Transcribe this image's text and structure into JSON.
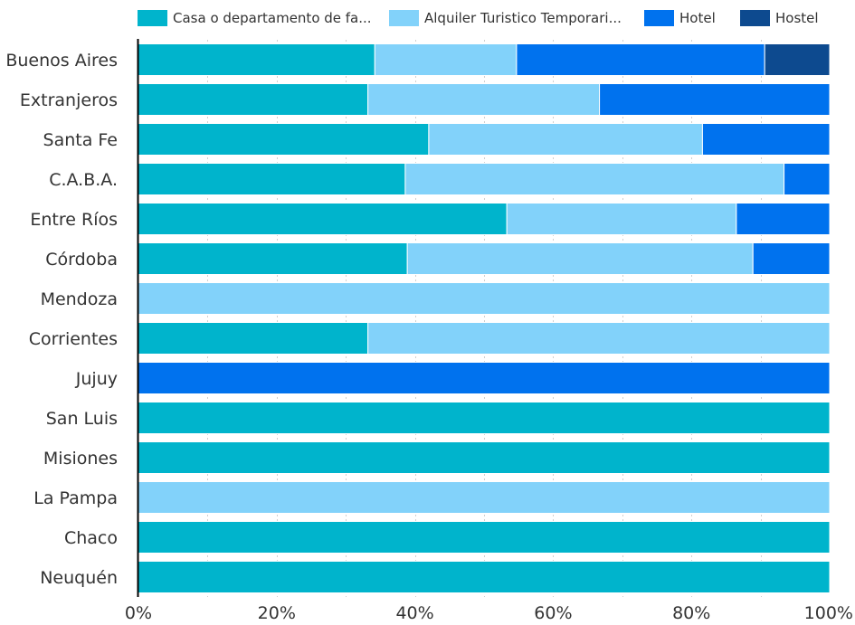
{
  "chart_data": {
    "type": "bar",
    "orientation": "horizontal",
    "stacked": "percent",
    "categories": [
      "Buenos Aires",
      "Extranjeros",
      "Santa Fe",
      "C.A.B.A.",
      "Entre Ríos",
      "Córdoba",
      "Mendoza",
      "Corrientes",
      "Jujuy",
      "San Luis",
      "Misiones",
      "La Pampa",
      "Chaco",
      "Neuquén"
    ],
    "series": [
      {
        "name": "Casa o departamento de fa...",
        "color": "#00b4cc",
        "values": [
          34.2,
          33.2,
          42.0,
          38.6,
          53.3,
          38.9,
          0,
          33.2,
          0,
          100,
          100,
          0,
          100,
          100
        ]
      },
      {
        "name": "Alquiler Turistico Temporari...",
        "color": "#82d2fa",
        "values": [
          20.5,
          33.5,
          39.6,
          54.8,
          33.2,
          50.0,
          100,
          66.8,
          0,
          0,
          0,
          100,
          0,
          0
        ]
      },
      {
        "name": "Hotel",
        "color": "#0072ee",
        "values": [
          35.9,
          33.3,
          18.4,
          6.6,
          13.5,
          11.1,
          0,
          0,
          100,
          0,
          0,
          0,
          0,
          0
        ]
      },
      {
        "name": "Hostel",
        "color": "#0d4a8f",
        "values": [
          9.4,
          0,
          0,
          0,
          0,
          0,
          0,
          0,
          0,
          0,
          0,
          0,
          0,
          0
        ]
      }
    ],
    "xlim": [
      0,
      100
    ],
    "xticks": [
      "0%",
      "20%",
      "40%",
      "60%",
      "80%",
      "100%"
    ],
    "xtick_values": [
      0,
      20,
      40,
      60,
      80,
      100
    ],
    "grid": "vertical-dotted",
    "legend_position": "top"
  }
}
